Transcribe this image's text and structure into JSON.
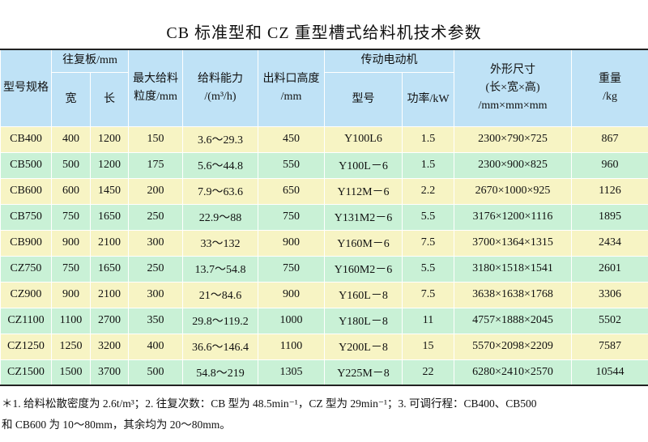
{
  "title": "CB 标准型和 CZ 重型槽式给料机技术参数",
  "table": {
    "header_top": [
      {
        "lines": [
          "型号规格"
        ],
        "rowspan": 2,
        "colspan": 1
      },
      {
        "lines": [
          "往复板/mm"
        ],
        "rowspan": 1,
        "colspan": 2
      },
      {
        "lines": [
          "最大给料",
          "粒度/mm"
        ],
        "rowspan": 2,
        "colspan": 1
      },
      {
        "lines": [
          "给料能力",
          "/(m³/h)"
        ],
        "rowspan": 2,
        "colspan": 1
      },
      {
        "lines": [
          "出料口高度",
          "/mm"
        ],
        "rowspan": 2,
        "colspan": 1
      },
      {
        "lines": [
          "传动电动机"
        ],
        "rowspan": 1,
        "colspan": 2
      },
      {
        "lines": [
          "外形尺寸",
          "(长×宽×高)",
          "/mm×mm×mm"
        ],
        "rowspan": 2,
        "colspan": 1
      },
      {
        "lines": [
          "重量",
          "/kg"
        ],
        "rowspan": 2,
        "colspan": 1
      }
    ],
    "header_sub": [
      "宽",
      "长",
      "型号",
      "功率/kW"
    ],
    "rows": [
      [
        "CB400",
        "400",
        "1200",
        "150",
        "3.6～29.3",
        "450",
        "Y100L6",
        "1.5",
        "2300×790×725",
        "867"
      ],
      [
        "CB500",
        "500",
        "1200",
        "175",
        "5.6～44.8",
        "550",
        "Y100L－6",
        "1.5",
        "2300×900×825",
        "960"
      ],
      [
        "CB600",
        "600",
        "1450",
        "200",
        "7.9～63.6",
        "650",
        "Y112M－6",
        "2.2",
        "2670×1000×925",
        "1126"
      ],
      [
        "CB750",
        "750",
        "1650",
        "250",
        "22.9～88",
        "750",
        "Y131M2－6",
        "5.5",
        "3176×1200×1116",
        "1895"
      ],
      [
        "CB900",
        "900",
        "2100",
        "300",
        "33～132",
        "900",
        "Y160M－6",
        "7.5",
        "3700×1364×1315",
        "2434"
      ],
      [
        "CZ750",
        "750",
        "1650",
        "250",
        "13.7～54.8",
        "750",
        "Y160M2－6",
        "5.5",
        "3180×1518×1541",
        "2601"
      ],
      [
        "CZ900",
        "900",
        "2100",
        "300",
        "21～84.6",
        "900",
        "Y160L－8",
        "7.5",
        "3638×1638×1768",
        "3306"
      ],
      [
        "CZ1100",
        "1100",
        "2700",
        "350",
        "29.8～119.2",
        "1000",
        "Y180L－8",
        "11",
        "4757×1888×2045",
        "5502"
      ],
      [
        "CZ1250",
        "1250",
        "3200",
        "400",
        "36.6～146.4",
        "1100",
        "Y200L－8",
        "15",
        "5570×2098×2209",
        "7587"
      ],
      [
        "CZ1500",
        "1500",
        "3700",
        "500",
        "54.8～219",
        "1305",
        "Y225M－8",
        "22",
        "6280×2410×2570",
        "10544"
      ]
    ]
  },
  "notes": [
    "＊1. 给料松散密度为 2.6t/m³；2. 往复次数：CB 型为 48.5min⁻¹，CZ 型为 29min⁻¹；3. 可调行程：CB400、CB500",
    "和 CB600 为 10～80mm，其余均为 20～80mm。"
  ]
}
